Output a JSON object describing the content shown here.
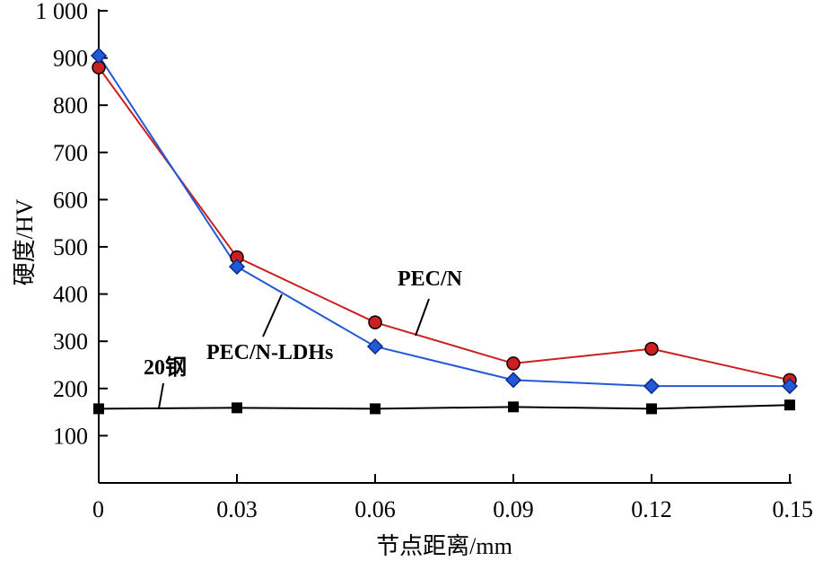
{
  "chart_data": {
    "type": "line",
    "title": "",
    "xlabel": "节点距离/mm",
    "ylabel": "硬度/HV",
    "x": [
      0,
      0.03,
      0.06,
      0.09,
      0.12,
      0.15
    ],
    "x_tick_labels": [
      "0",
      "0.03",
      "0.06",
      "0.09",
      "0.12",
      "0.15"
    ],
    "xlim": [
      0,
      0.15
    ],
    "ylim": [
      0,
      1000
    ],
    "y_ticks": [
      100,
      200,
      300,
      400,
      500,
      600,
      700,
      800,
      900,
      1000
    ],
    "y_tick_labels": [
      "100",
      "200",
      "300",
      "400",
      "500",
      "600",
      "700",
      "800",
      "900",
      "1 000"
    ],
    "grid": false,
    "legend": "none (series identified by on-plot annotations)",
    "series": [
      {
        "name": "PEC/N",
        "color": "#cc1f1f",
        "marker": "circle",
        "values": [
          880,
          478,
          340,
          253,
          284,
          218
        ]
      },
      {
        "name": "PEC/N-LDHs",
        "color": "#2459d6",
        "marker": "diamond",
        "values": [
          905,
          458,
          289,
          218,
          205,
          205
        ]
      },
      {
        "name": "20钢",
        "color": "#000000",
        "marker": "square",
        "values": [
          157,
          159,
          157,
          161,
          157,
          165
        ]
      }
    ]
  }
}
